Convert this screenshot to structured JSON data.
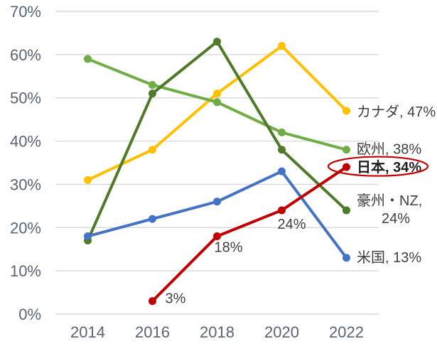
{
  "chart_data": {
    "type": "line",
    "title": "",
    "xlabel": "",
    "ylabel": "",
    "x_categories": [
      "2014",
      "2016",
      "2018",
      "2020",
      "2022"
    ],
    "y_ticks": [
      "0%",
      "10%",
      "20%",
      "30%",
      "40%",
      "50%",
      "60%",
      "70%"
    ],
    "ylim": [
      0,
      70
    ],
    "grid": true,
    "gridline_color": "#d9d9d9",
    "axis_label_color": "#5a6474",
    "data_label_color": "#404040",
    "series": [
      {
        "id": "canada",
        "name": "カナダ",
        "color": "#FFC000",
        "values": [
          31,
          38,
          51,
          62,
          47
        ],
        "end_label_lines": [
          "カナダ, 47%"
        ],
        "bold": false,
        "circled": false,
        "point_labels": [
          null,
          null,
          null,
          null,
          null
        ]
      },
      {
        "id": "europe",
        "name": "欧州",
        "color": "#70AD47",
        "values": [
          59,
          53,
          49,
          42,
          38
        ],
        "end_label_lines": [
          "欧州, 38%"
        ],
        "bold": false,
        "circled": false,
        "point_labels": [
          null,
          null,
          null,
          null,
          null
        ]
      },
      {
        "id": "australia-nz",
        "name": "豪州・NZ",
        "color": "#4F7A28",
        "values": [
          17,
          51,
          63,
          38,
          24
        ],
        "end_label_lines": [
          "豪州・NZ,",
          "24%"
        ],
        "bold": false,
        "circled": false,
        "point_labels": [
          null,
          null,
          null,
          null,
          null
        ]
      },
      {
        "id": "usa",
        "name": "米国",
        "color": "#4472C4",
        "values": [
          18,
          22,
          26,
          33,
          13
        ],
        "end_label_lines": [
          "米国, 13%"
        ],
        "bold": false,
        "circled": false,
        "point_labels": [
          null,
          null,
          null,
          null,
          null
        ]
      },
      {
        "id": "japan",
        "name": "日本",
        "color": "#C00000",
        "values": [
          null,
          3,
          18,
          24,
          34
        ],
        "end_label_lines": [
          "日本, 34%"
        ],
        "bold": true,
        "circled": true,
        "point_labels": [
          null,
          "3%",
          "18%",
          "24%",
          null
        ]
      }
    ],
    "annotation": {
      "type": "ellipse",
      "target": "japan-end-label",
      "color": "#C00000"
    }
  }
}
